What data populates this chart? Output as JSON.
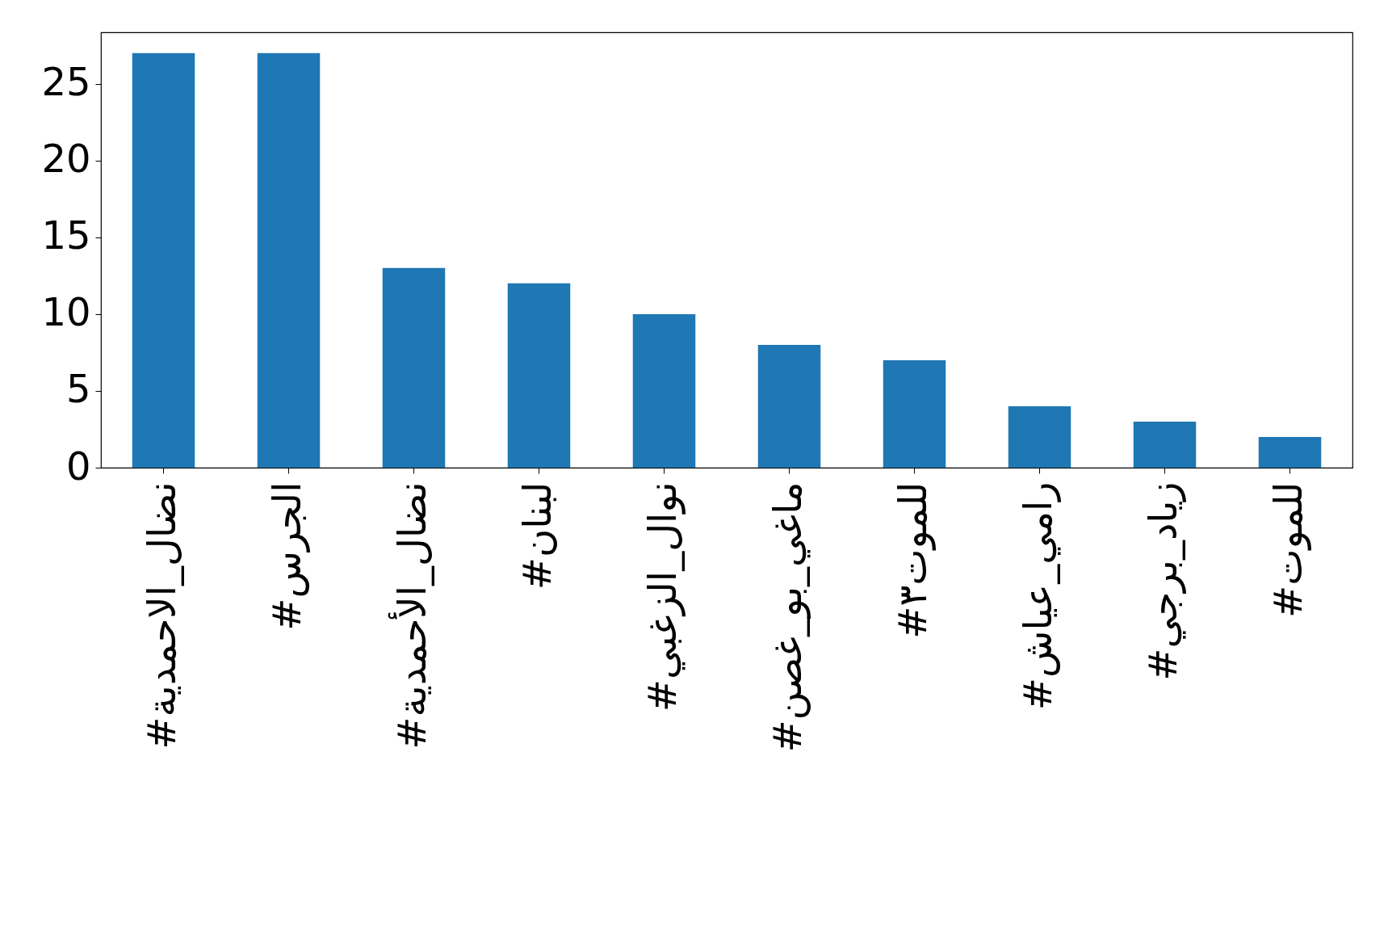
{
  "chart_data": {
    "type": "bar",
    "categories": [
      "#نضال_الاحمدية",
      "#الجرس",
      "#نضال_الأحمدية",
      "#لبنان",
      "#نوال_الزغبي",
      "#ماغي_بو_غصن",
      "#للموت٣",
      "#رامي_عياش",
      "#زياد_برجي",
      "#للموت"
    ],
    "values": [
      27,
      27,
      13,
      12,
      10,
      8,
      7,
      4,
      3,
      2
    ],
    "color": "#1f77b4",
    "ylim": [
      0,
      28.35
    ],
    "yticks": [
      0,
      5,
      10,
      15,
      20,
      25
    ],
    "grid": false
  }
}
